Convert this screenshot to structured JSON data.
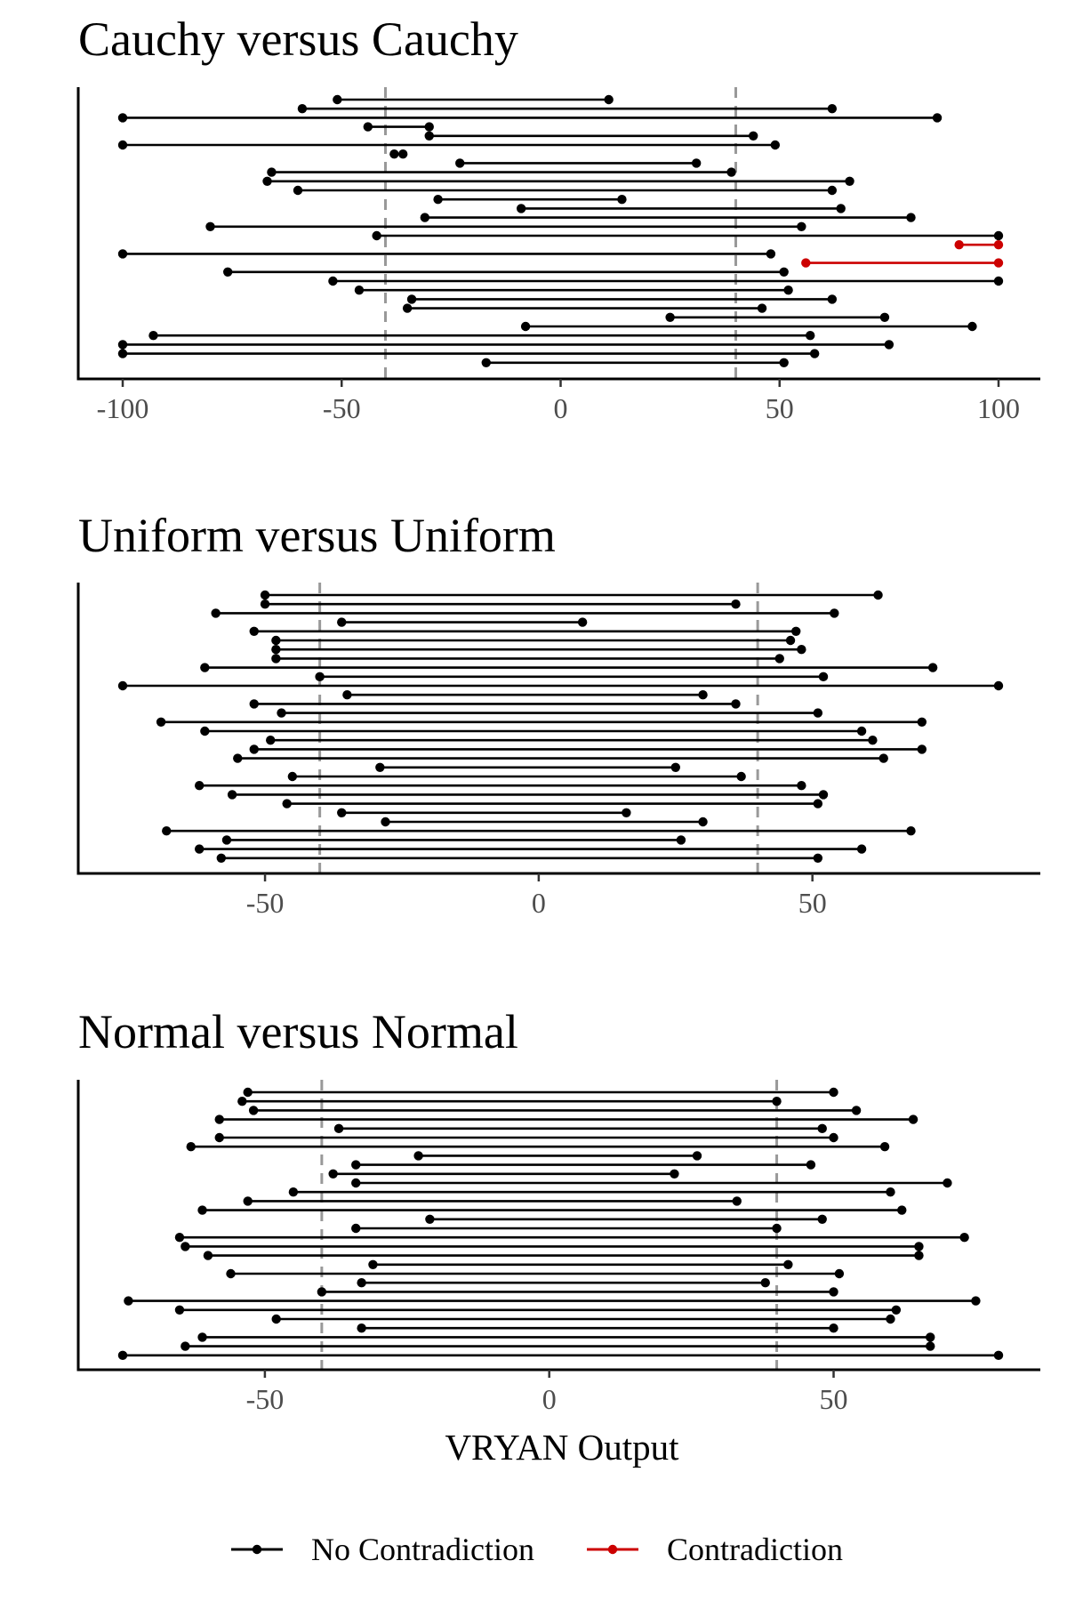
{
  "colors": {
    "no_contradiction": "#000000",
    "contradiction": "#cc0000",
    "reference_line": "#999999",
    "axis": "#000000"
  },
  "chart_data": [
    {
      "type": "dumbbell",
      "title": "Cauchy versus Cauchy",
      "xlim": [
        -100,
        100
      ],
      "xticks": [
        -100,
        -50,
        0,
        50,
        100
      ],
      "reference_lines": [
        -40,
        40
      ],
      "intervals": [
        {
          "lo": -51,
          "hi": 11,
          "group": "No Contradiction"
        },
        {
          "lo": -59,
          "hi": 62,
          "group": "No Contradiction"
        },
        {
          "lo": -100,
          "hi": 86,
          "group": "No Contradiction"
        },
        {
          "lo": -44,
          "hi": -30,
          "group": "No Contradiction"
        },
        {
          "lo": -30,
          "hi": 44,
          "group": "No Contradiction"
        },
        {
          "lo": -100,
          "hi": 49,
          "group": "No Contradiction"
        },
        {
          "lo": -38,
          "hi": -36,
          "group": "No Contradiction"
        },
        {
          "lo": -23,
          "hi": 31,
          "group": "No Contradiction"
        },
        {
          "lo": -66,
          "hi": 39,
          "group": "No Contradiction"
        },
        {
          "lo": -67,
          "hi": 66,
          "group": "No Contradiction"
        },
        {
          "lo": -60,
          "hi": 62,
          "group": "No Contradiction"
        },
        {
          "lo": -28,
          "hi": 14,
          "group": "No Contradiction"
        },
        {
          "lo": -9,
          "hi": 64,
          "group": "No Contradiction"
        },
        {
          "lo": -31,
          "hi": 80,
          "group": "No Contradiction"
        },
        {
          "lo": -80,
          "hi": 55,
          "group": "No Contradiction"
        },
        {
          "lo": -42,
          "hi": 100,
          "group": "No Contradiction"
        },
        {
          "lo": 91,
          "hi": 100,
          "group": "Contradiction"
        },
        {
          "lo": -100,
          "hi": 48,
          "group": "No Contradiction"
        },
        {
          "lo": 56,
          "hi": 100,
          "group": "Contradiction"
        },
        {
          "lo": -76,
          "hi": 51,
          "group": "No Contradiction"
        },
        {
          "lo": -52,
          "hi": 100,
          "group": "No Contradiction"
        },
        {
          "lo": -46,
          "hi": 52,
          "group": "No Contradiction"
        },
        {
          "lo": -34,
          "hi": 62,
          "group": "No Contradiction"
        },
        {
          "lo": -35,
          "hi": 46,
          "group": "No Contradiction"
        },
        {
          "lo": 25,
          "hi": 74,
          "group": "No Contradiction"
        },
        {
          "lo": -8,
          "hi": 94,
          "group": "No Contradiction"
        },
        {
          "lo": -93,
          "hi": 57,
          "group": "No Contradiction"
        },
        {
          "lo": -100,
          "hi": 75,
          "group": "No Contradiction"
        },
        {
          "lo": -100,
          "hi": 58,
          "group": "No Contradiction"
        },
        {
          "lo": -17,
          "hi": 51,
          "group": "No Contradiction"
        }
      ]
    },
    {
      "type": "dumbbell",
      "title": "Uniform versus Uniform",
      "xlim": [
        -76,
        84
      ],
      "xticks": [
        -50,
        0,
        50
      ],
      "reference_lines": [
        -40,
        40
      ],
      "intervals": [
        {
          "lo": -50,
          "hi": 62,
          "group": "No Contradiction"
        },
        {
          "lo": -50,
          "hi": 36,
          "group": "No Contradiction"
        },
        {
          "lo": -59,
          "hi": 54,
          "group": "No Contradiction"
        },
        {
          "lo": -36,
          "hi": 8,
          "group": "No Contradiction"
        },
        {
          "lo": -52,
          "hi": 47,
          "group": "No Contradiction"
        },
        {
          "lo": -48,
          "hi": 46,
          "group": "No Contradiction"
        },
        {
          "lo": -48,
          "hi": 48,
          "group": "No Contradiction"
        },
        {
          "lo": -48,
          "hi": 44,
          "group": "No Contradiction"
        },
        {
          "lo": -61,
          "hi": 72,
          "group": "No Contradiction"
        },
        {
          "lo": -40,
          "hi": 52,
          "group": "No Contradiction"
        },
        {
          "lo": -76,
          "hi": 84,
          "group": "No Contradiction"
        },
        {
          "lo": -35,
          "hi": 30,
          "group": "No Contradiction"
        },
        {
          "lo": -52,
          "hi": 36,
          "group": "No Contradiction"
        },
        {
          "lo": -47,
          "hi": 51,
          "group": "No Contradiction"
        },
        {
          "lo": -69,
          "hi": 70,
          "group": "No Contradiction"
        },
        {
          "lo": -61,
          "hi": 59,
          "group": "No Contradiction"
        },
        {
          "lo": -49,
          "hi": 61,
          "group": "No Contradiction"
        },
        {
          "lo": -52,
          "hi": 70,
          "group": "No Contradiction"
        },
        {
          "lo": -55,
          "hi": 63,
          "group": "No Contradiction"
        },
        {
          "lo": -29,
          "hi": 25,
          "group": "No Contradiction"
        },
        {
          "lo": -45,
          "hi": 37,
          "group": "No Contradiction"
        },
        {
          "lo": -62,
          "hi": 48,
          "group": "No Contradiction"
        },
        {
          "lo": -56,
          "hi": 52,
          "group": "No Contradiction"
        },
        {
          "lo": -46,
          "hi": 51,
          "group": "No Contradiction"
        },
        {
          "lo": -36,
          "hi": 16,
          "group": "No Contradiction"
        },
        {
          "lo": -28,
          "hi": 30,
          "group": "No Contradiction"
        },
        {
          "lo": -68,
          "hi": 68,
          "group": "No Contradiction"
        },
        {
          "lo": -57,
          "hi": 26,
          "group": "No Contradiction"
        },
        {
          "lo": -62,
          "hi": 59,
          "group": "No Contradiction"
        },
        {
          "lo": -58,
          "hi": 51,
          "group": "No Contradiction"
        }
      ]
    },
    {
      "type": "dumbbell",
      "title": "Normal versus Normal",
      "xlim": [
        -75,
        79
      ],
      "xticks": [
        -50,
        0,
        50
      ],
      "reference_lines": [
        -40,
        40
      ],
      "intervals": [
        {
          "lo": -53,
          "hi": 50,
          "group": "No Contradiction"
        },
        {
          "lo": -54,
          "hi": 40,
          "group": "No Contradiction"
        },
        {
          "lo": -52,
          "hi": 54,
          "group": "No Contradiction"
        },
        {
          "lo": -58,
          "hi": 64,
          "group": "No Contradiction"
        },
        {
          "lo": -37,
          "hi": 48,
          "group": "No Contradiction"
        },
        {
          "lo": -58,
          "hi": 50,
          "group": "No Contradiction"
        },
        {
          "lo": -63,
          "hi": 59,
          "group": "No Contradiction"
        },
        {
          "lo": -23,
          "hi": 26,
          "group": "No Contradiction"
        },
        {
          "lo": -34,
          "hi": 46,
          "group": "No Contradiction"
        },
        {
          "lo": -38,
          "hi": 22,
          "group": "No Contradiction"
        },
        {
          "lo": -34,
          "hi": 70,
          "group": "No Contradiction"
        },
        {
          "lo": -45,
          "hi": 60,
          "group": "No Contradiction"
        },
        {
          "lo": -53,
          "hi": 33,
          "group": "No Contradiction"
        },
        {
          "lo": -61,
          "hi": 62,
          "group": "No Contradiction"
        },
        {
          "lo": -21,
          "hi": 48,
          "group": "No Contradiction"
        },
        {
          "lo": -34,
          "hi": 40,
          "group": "No Contradiction"
        },
        {
          "lo": -65,
          "hi": 73,
          "group": "No Contradiction"
        },
        {
          "lo": -64,
          "hi": 65,
          "group": "No Contradiction"
        },
        {
          "lo": -60,
          "hi": 65,
          "group": "No Contradiction"
        },
        {
          "lo": -31,
          "hi": 42,
          "group": "No Contradiction"
        },
        {
          "lo": -56,
          "hi": 51,
          "group": "No Contradiction"
        },
        {
          "lo": -33,
          "hi": 38,
          "group": "No Contradiction"
        },
        {
          "lo": -40,
          "hi": 50,
          "group": "No Contradiction"
        },
        {
          "lo": -74,
          "hi": 75,
          "group": "No Contradiction"
        },
        {
          "lo": -65,
          "hi": 61,
          "group": "No Contradiction"
        },
        {
          "lo": -48,
          "hi": 60,
          "group": "No Contradiction"
        },
        {
          "lo": -33,
          "hi": 50,
          "group": "No Contradiction"
        },
        {
          "lo": -61,
          "hi": 67,
          "group": "No Contradiction"
        },
        {
          "lo": -64,
          "hi": 67,
          "group": "No Contradiction"
        },
        {
          "lo": -75,
          "hi": 79,
          "group": "No Contradiction"
        }
      ]
    }
  ],
  "xlabel": "VRYAN Output",
  "legend": {
    "placement": "bottom",
    "entries": [
      {
        "label": "No Contradiction",
        "color": "#000000"
      },
      {
        "label": "Contradiction",
        "color": "#cc0000"
      }
    ]
  }
}
